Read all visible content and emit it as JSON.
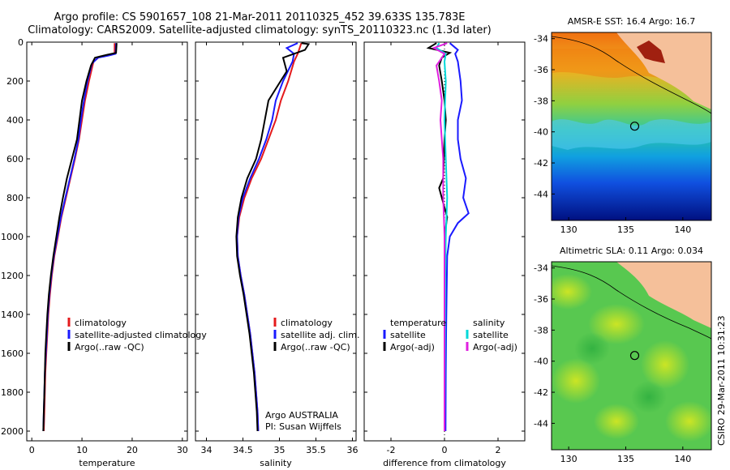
{
  "header": {
    "line1": "Argo profile: CS 5901657_108 21-Mar-2011 20110325_452 39.633S 135.783E",
    "line2": "Climatology: CARS2009. Satellite-adjusted climatology: synTS_20110323.nc (1.3d later)"
  },
  "side_text": "CSIRO 29-Mar-2011 10:31:23",
  "colors": {
    "climatology": "#e41a1c",
    "satellite": "#1a1aff",
    "argo": "#000000",
    "sat_diff": "#00d8d8",
    "argo_diff": "#e020e0"
  },
  "chart_data": [
    {
      "type": "line",
      "xlabel": "temperature",
      "ylabel": "",
      "xlim": [
        -1,
        31
      ],
      "ylim": [
        2050,
        0
      ],
      "xticks": [
        0,
        10,
        20,
        30
      ],
      "yticks": [
        0,
        200,
        400,
        600,
        800,
        1000,
        1200,
        1400,
        1600,
        1800,
        2000
      ],
      "legend": {
        "placement": "lower-right",
        "entries": [
          "climatology",
          "satellite-adjusted climatology",
          "Argo(..raw -QC)"
        ]
      },
      "series": [
        {
          "name": "climatology",
          "color": "climatology",
          "points": [
            [
              16.5,
              5
            ],
            [
              16.5,
              60
            ],
            [
              15.8,
              65
            ],
            [
              13.5,
              75
            ],
            [
              12.3,
              100
            ],
            [
              11.4,
              200
            ],
            [
              10.6,
              300
            ],
            [
              10.0,
              400
            ],
            [
              9.4,
              500
            ],
            [
              8.6,
              600
            ],
            [
              7.7,
              700
            ],
            [
              6.8,
              800
            ],
            [
              5.9,
              900
            ],
            [
              5.2,
              1000
            ],
            [
              4.5,
              1100
            ],
            [
              4.0,
              1200
            ],
            [
              3.6,
              1300
            ],
            [
              3.3,
              1400
            ],
            [
              3.1,
              1500
            ],
            [
              2.9,
              1600
            ],
            [
              2.7,
              1700
            ],
            [
              2.6,
              1800
            ],
            [
              2.5,
              1900
            ],
            [
              2.4,
              2000
            ]
          ]
        },
        {
          "name": "satellite-adjusted climatology",
          "color": "satellite",
          "points": [
            [
              16.8,
              5
            ],
            [
              16.7,
              60
            ],
            [
              15.5,
              68
            ],
            [
              13.2,
              80
            ],
            [
              12.0,
              110
            ],
            [
              11.1,
              200
            ],
            [
              10.4,
              300
            ],
            [
              9.8,
              400
            ],
            [
              9.3,
              500
            ],
            [
              8.5,
              600
            ],
            [
              7.6,
              700
            ],
            [
              6.7,
              800
            ],
            [
              5.8,
              900
            ],
            [
              5.1,
              1000
            ],
            [
              4.4,
              1100
            ],
            [
              3.9,
              1200
            ],
            [
              3.5,
              1300
            ],
            [
              3.2,
              1400
            ],
            [
              3.0,
              1500
            ],
            [
              2.8,
              1600
            ],
            [
              2.6,
              1700
            ],
            [
              2.5,
              1800
            ],
            [
              2.4,
              1900
            ],
            [
              2.3,
              2000
            ]
          ]
        },
        {
          "name": "Argo(..raw -QC)",
          "color": "argo",
          "points": [
            [
              16.9,
              5
            ],
            [
              16.8,
              55
            ],
            [
              15.0,
              65
            ],
            [
              12.6,
              80
            ],
            [
              11.8,
              120
            ],
            [
              10.9,
              200
            ],
            [
              10.0,
              300
            ],
            [
              9.5,
              400
            ],
            [
              9.0,
              500
            ],
            [
              8.0,
              600
            ],
            [
              7.0,
              700
            ],
            [
              6.2,
              800
            ],
            [
              5.5,
              900
            ],
            [
              4.9,
              1000
            ],
            [
              4.3,
              1100
            ],
            [
              3.8,
              1200
            ],
            [
              3.4,
              1300
            ],
            [
              3.1,
              1400
            ],
            [
              2.9,
              1500
            ],
            [
              2.7,
              1600
            ],
            [
              2.6,
              1700
            ],
            [
              2.5,
              1800
            ],
            [
              2.4,
              1900
            ],
            [
              2.3,
              2000
            ]
          ]
        }
      ]
    },
    {
      "type": "line",
      "xlabel": "salinity",
      "ylabel": "",
      "xlim": [
        33.85,
        36.05
      ],
      "ylim": [
        2050,
        0
      ],
      "xticks": [
        34,
        34.5,
        35,
        35.5,
        36
      ],
      "yticks": [
        0,
        200,
        400,
        600,
        800,
        1000,
        1200,
        1400,
        1600,
        1800,
        2000
      ],
      "legend": {
        "placement": "lower-right",
        "entries": [
          "climatology",
          "satellite adj. clim.",
          "Argo(..raw -QC)"
        ]
      },
      "annotation": [
        "Argo AUSTRALIA",
        "PI: Susan Wijffels"
      ],
      "series": [
        {
          "name": "climatology",
          "color": "climatology",
          "points": [
            [
              35.3,
              5
            ],
            [
              35.25,
              60
            ],
            [
              35.2,
              100
            ],
            [
              35.12,
              200
            ],
            [
              35.02,
              300
            ],
            [
              34.95,
              400
            ],
            [
              34.85,
              500
            ],
            [
              34.75,
              600
            ],
            [
              34.62,
              700
            ],
            [
              34.52,
              800
            ],
            [
              34.45,
              900
            ],
            [
              34.42,
              1000
            ],
            [
              34.43,
              1100
            ],
            [
              34.47,
              1200
            ],
            [
              34.52,
              1300
            ],
            [
              34.56,
              1400
            ],
            [
              34.6,
              1500
            ],
            [
              34.63,
              1600
            ],
            [
              34.66,
              1700
            ],
            [
              34.68,
              1800
            ],
            [
              34.7,
              1900
            ],
            [
              34.71,
              2000
            ]
          ]
        },
        {
          "name": "satellite adj. clim.",
          "color": "satellite",
          "points": [
            [
              35.25,
              5
            ],
            [
              35.1,
              30
            ],
            [
              35.2,
              60
            ],
            [
              35.18,
              100
            ],
            [
              35.05,
              200
            ],
            [
              34.95,
              300
            ],
            [
              34.9,
              400
            ],
            [
              34.82,
              500
            ],
            [
              34.72,
              600
            ],
            [
              34.6,
              700
            ],
            [
              34.5,
              800
            ],
            [
              34.44,
              900
            ],
            [
              34.42,
              1000
            ],
            [
              34.43,
              1100
            ],
            [
              34.47,
              1200
            ],
            [
              34.52,
              1300
            ],
            [
              34.56,
              1400
            ],
            [
              34.6,
              1500
            ],
            [
              34.63,
              1600
            ],
            [
              34.66,
              1700
            ],
            [
              34.68,
              1800
            ],
            [
              34.7,
              1900
            ],
            [
              34.71,
              2000
            ]
          ]
        },
        {
          "name": "Argo(..raw -QC)",
          "color": "argo",
          "points": [
            [
              35.3,
              5
            ],
            [
              35.4,
              10
            ],
            [
              35.35,
              40
            ],
            [
              35.05,
              80
            ],
            [
              35.1,
              150
            ],
            [
              34.85,
              300
            ],
            [
              34.8,
              400
            ],
            [
              34.75,
              500
            ],
            [
              34.68,
              600
            ],
            [
              34.56,
              700
            ],
            [
              34.48,
              800
            ],
            [
              34.43,
              900
            ],
            [
              34.41,
              1000
            ],
            [
              34.42,
              1100
            ],
            [
              34.46,
              1200
            ],
            [
              34.51,
              1300
            ],
            [
              34.55,
              1400
            ],
            [
              34.59,
              1500
            ],
            [
              34.62,
              1600
            ],
            [
              34.65,
              1700
            ],
            [
              34.67,
              1800
            ],
            [
              34.69,
              1900
            ],
            [
              34.7,
              2000
            ]
          ]
        }
      ]
    },
    {
      "type": "line",
      "xlabel": "difference from climatology",
      "ylabel": "",
      "xlim": [
        -3,
        3
      ],
      "ylim": [
        2050,
        0
      ],
      "xticks": [
        -2,
        0,
        2
      ],
      "yticks": [
        0,
        200,
        400,
        600,
        800,
        1000,
        1200,
        1400,
        1600,
        1800,
        2000
      ],
      "legend": {
        "placement": "lower-center",
        "headers": [
          "temperature",
          "salinity"
        ],
        "entries": [
          "satellite",
          "Argo(-adj)",
          "satellite",
          "Argo(-adj)"
        ]
      },
      "series": [
        {
          "name": "temperature satellite",
          "color": "satellite",
          "points": [
            [
              0.2,
              5
            ],
            [
              0.5,
              40
            ],
            [
              0.4,
              60
            ],
            [
              0.5,
              100
            ],
            [
              0.6,
              200
            ],
            [
              0.65,
              300
            ],
            [
              0.5,
              400
            ],
            [
              0.5,
              500
            ],
            [
              0.6,
              600
            ],
            [
              0.8,
              700
            ],
            [
              0.7,
              800
            ],
            [
              0.9,
              880
            ],
            [
              0.5,
              930
            ],
            [
              0.2,
              1000
            ],
            [
              0.1,
              1100
            ],
            [
              0.08,
              1300
            ],
            [
              0.06,
              1500
            ],
            [
              0.05,
              1700
            ],
            [
              0.04,
              2000
            ]
          ]
        },
        {
          "name": "temperature Argo(-adj)",
          "color": "argo",
          "points": [
            [
              -0.3,
              5
            ],
            [
              -0.6,
              30
            ],
            [
              0.2,
              55
            ],
            [
              -0.1,
              80
            ],
            [
              -0.2,
              120
            ],
            [
              -0.1,
              200
            ],
            [
              0.0,
              300
            ],
            [
              0.05,
              400
            ],
            [
              0.0,
              500
            ],
            [
              -0.05,
              700
            ],
            [
              -0.2,
              750
            ],
            [
              -0.1,
              800
            ],
            [
              0.1,
              900
            ],
            [
              0.0,
              1000
            ],
            [
              0.0,
              1200
            ],
            [
              0.0,
              1500
            ],
            [
              0.0,
              2000
            ]
          ]
        },
        {
          "name": "salinity satellite",
          "color": "sat_diff",
          "points": [
            [
              -0.2,
              5
            ],
            [
              -0.3,
              30
            ],
            [
              0.05,
              60
            ],
            [
              0.0,
              100
            ],
            [
              0.05,
              200
            ],
            [
              0.0,
              400
            ],
            [
              0.05,
              600
            ],
            [
              0.1,
              800
            ],
            [
              0.05,
              1000
            ],
            [
              0.03,
              1200
            ],
            [
              0.02,
              1500
            ],
            [
              0.0,
              2000
            ]
          ]
        },
        {
          "name": "salinity Argo(-adj)",
          "color": "argo_diff",
          "points": [
            [
              0.1,
              5
            ],
            [
              -0.4,
              30
            ],
            [
              0.0,
              60
            ],
            [
              -0.3,
              120
            ],
            [
              -0.2,
              200
            ],
            [
              -0.1,
              300
            ],
            [
              -0.15,
              400
            ],
            [
              -0.1,
              500
            ],
            [
              -0.05,
              600
            ],
            [
              -0.05,
              700
            ],
            [
              -0.05,
              800
            ],
            [
              -0.02,
              900
            ],
            [
              0.0,
              1000
            ],
            [
              0.0,
              1200
            ],
            [
              0.0,
              1500
            ],
            [
              0.0,
              2000
            ]
          ]
        }
      ]
    },
    {
      "type": "heatmap",
      "title": "AMSR-E SST: 16.4 Argo: 16.7",
      "xlim": [
        128.5,
        142.5
      ],
      "ylim": [
        -45.7,
        -33.6
      ],
      "xticks": [
        130,
        135,
        140
      ],
      "yticks": [
        -34,
        -36,
        -38,
        -40,
        -42,
        -44
      ],
      "marker": {
        "lon": 135.783,
        "lat": -39.633
      }
    },
    {
      "type": "heatmap",
      "title": "Altimetric SLA: 0.11 Argo: 0.034",
      "xlim": [
        128.5,
        142.5
      ],
      "ylim": [
        -45.7,
        -33.6
      ],
      "xticks": [
        130,
        135,
        140
      ],
      "yticks": [
        -34,
        -36,
        -38,
        -40,
        -42,
        -44
      ],
      "marker": {
        "lon": 135.783,
        "lat": -39.633
      }
    }
  ]
}
